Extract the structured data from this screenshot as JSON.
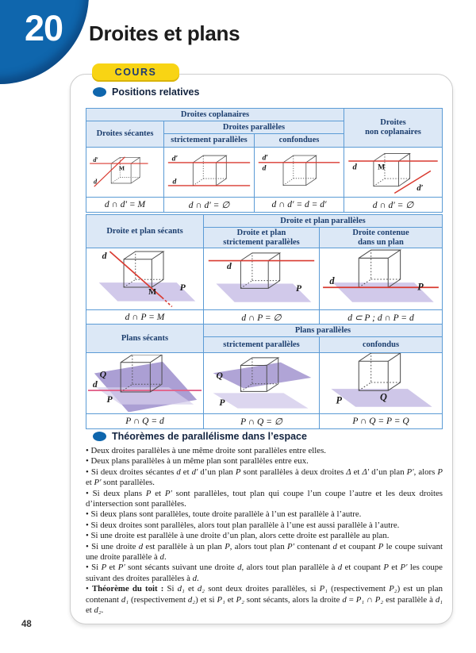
{
  "page": {
    "chapter_number": "20",
    "title": "Droites et plans",
    "badge_label": "COURS",
    "page_number": "48"
  },
  "colors": {
    "accent_blue": "#0f66ad",
    "badge_yellow": "#f8d414",
    "navy": "#1c3e6e",
    "table_border": "#5b9bd5",
    "header_bg": "#dce8f6",
    "cube_edge": "#4c4c4c",
    "red_line": "#d93a30",
    "pink_line": "#e2638b",
    "plane": "#c9c0e6",
    "plane_dark": "#a79ad2",
    "plane_light": "#d6cfec"
  },
  "section1": {
    "heading": "Positions relatives"
  },
  "section2": {
    "heading": "Théorèmes de parallélisme dans l’espace"
  },
  "table1": {
    "header_coplanaires": "Droites coplanaires",
    "header_non_coplanaires": "Droites\nnon coplanaires",
    "header_secantes": "Droites sécantes",
    "header_paralleles": "Droites parallèles",
    "header_strictement": "strictement parallèles",
    "header_confondues": "confondues",
    "cells": [
      {
        "type": "lines-secantes",
        "labels": [
          "d′",
          "d",
          "M"
        ],
        "formula": "d ∩ d′ = M"
      },
      {
        "type": "lines-paralleles",
        "labels": [
          "d′",
          "d"
        ],
        "formula": "d ∩ d′ = ∅"
      },
      {
        "type": "lines-confondues",
        "labels": [
          "d′",
          "d"
        ],
        "formula": "d ∩ d′ = d = d′"
      },
      {
        "type": "lines-non-coplanaires",
        "labels": [
          "d",
          "M",
          "d′"
        ],
        "formula": "d ∩ d′ = ∅"
      }
    ]
  },
  "table2": {
    "header_secants": "Droite et plan sécants",
    "header_paralleles": "Droite et plan parallèles",
    "header_strictement": "Droite et plan\nstrictement parallèles",
    "header_contenue": "Droite contenue\ndans un plan",
    "cells": [
      {
        "type": "line-plane-secants",
        "labels": [
          "d",
          "P",
          "M"
        ],
        "formula": "d ∩ P = M"
      },
      {
        "type": "line-plane-paralleles",
        "labels": [
          "d",
          "P"
        ],
        "formula": "d ∩ P = ∅"
      },
      {
        "type": "line-in-plane",
        "labels": [
          "d",
          "P"
        ],
        "formula": "d ⊂ P ; d ∩ P = d"
      }
    ]
  },
  "table3": {
    "header_secants": "Plans sécants",
    "header_paralleles": "Plans parallèles",
    "header_strictement": "strictement parallèles",
    "header_confondus": "confondus",
    "cells": [
      {
        "type": "planes-secants",
        "labels": [
          "Q",
          "d",
          "P"
        ],
        "formula": "P ∩ Q = d"
      },
      {
        "type": "planes-paralleles",
        "labels": [
          "Q",
          "P"
        ],
        "formula": "P ∩ Q = ∅"
      },
      {
        "type": "planes-confondus",
        "labels": [
          "P",
          "Q"
        ],
        "formula": "P ∩ Q = P = Q"
      }
    ]
  },
  "theorems": {
    "bullets": [
      {
        "lead": "",
        "text": "Deux droites parallèles à une même droite sont parallèles entre elles."
      },
      {
        "lead": "",
        "text": "Deux plans parallèles à un même plan sont parallèles entre eux."
      },
      {
        "lead": "",
        "text": "Si deux droites sécantes d et d′ d’un plan P sont parallèles à deux droites Δ et Δ′ d’un plan P′, alors P et P′ sont parallèles."
      },
      {
        "lead": "",
        "text": "Si deux plans P et P′ sont parallèles, tout plan qui coupe l’un coupe l’autre et les deux droites d’intersection sont parallèles."
      },
      {
        "lead": "",
        "text": "Si deux plans sont parallèles, toute droite parallèle à l’un est parallèle à l’autre."
      },
      {
        "lead": "",
        "text": "Si deux droites sont parallèles, alors tout plan parallèle à l’une est aussi parallèle à l’autre."
      },
      {
        "lead": "",
        "text": "Si une droite est parallèle à une droite d’un plan, alors cette droite est parallèle au plan."
      },
      {
        "lead": "",
        "text": "Si une droite d est parallèle à un plan P, alors tout plan P′ contenant d et coupant P le coupe suivant une droite parallèle à d."
      },
      {
        "lead": "",
        "text": "Si P et P′ sont sécants suivant une droite d, alors tout plan parallèle à d et coupant P et P′ les coupe suivant des droites parallèles à d."
      },
      {
        "lead": "Théorème du toit :",
        "text": "Si d₁ et d₂ sont deux droites parallèles, si P₁ (respectivement P₂) est un plan contenant d₁ (respectivement d₂) et si P₁ et P₂ sont sécants, alors la droite d = P₁ ∩ P₂ est parallèle à d₁ et d₂."
      }
    ]
  }
}
